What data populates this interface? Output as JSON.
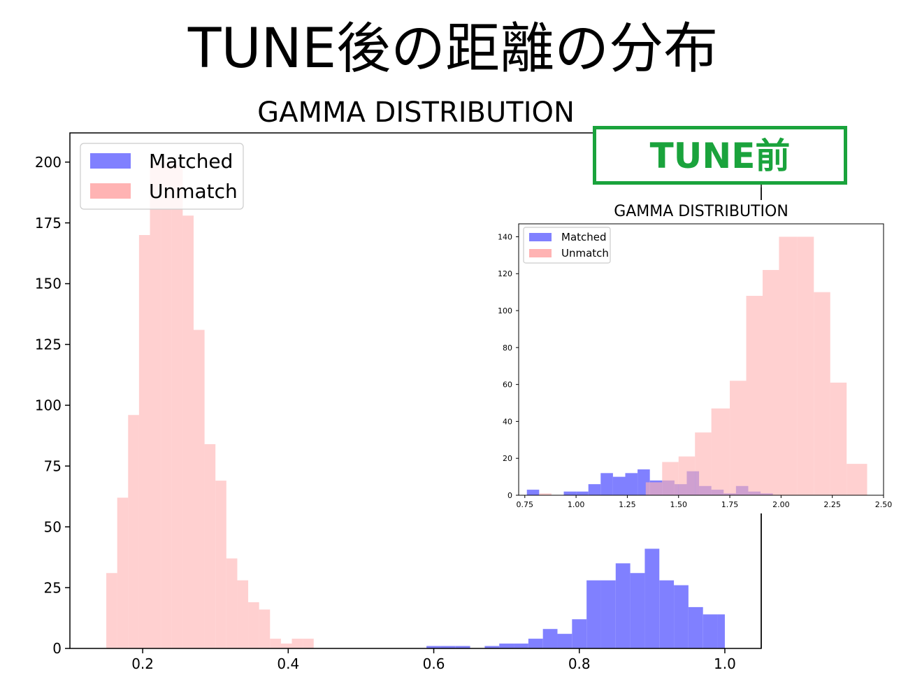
{
  "slide_title": "TUNE後の距離の分布",
  "colors": {
    "matched": "#8080ff",
    "unmatch": "#ffb3b3",
    "overlap": "#9d5cc5",
    "tune_green": "#1aa33c"
  },
  "chart_data": [
    {
      "type": "histogram",
      "title": "GAMMA DISTRIBUTION",
      "xlabel": "",
      "ylabel": "",
      "xlim": [
        0.1,
        1.05
      ],
      "ylim": [
        0,
        212
      ],
      "xticks": [
        0.2,
        0.4,
        0.6,
        0.8,
        1.0
      ],
      "xtick_labels": [
        "0.2",
        "0.4",
        "0.6",
        "0.8",
        "1.0"
      ],
      "yticks": [
        0,
        25,
        50,
        75,
        100,
        125,
        150,
        175,
        200
      ],
      "ytick_labels": [
        "0",
        "25",
        "50",
        "75",
        "100",
        "125",
        "150",
        "175",
        "200"
      ],
      "legend": {
        "position": "top-left",
        "entries": [
          "Matched",
          "Unmatch"
        ]
      },
      "grid": false,
      "series": [
        {
          "name": "Matched",
          "color": "#8080ff",
          "bin_edges": [
            0.59,
            0.61,
            0.63,
            0.65,
            0.67,
            0.69,
            0.71,
            0.73,
            0.75,
            0.77,
            0.79,
            0.81,
            0.83,
            0.85,
            0.87,
            0.89,
            0.91,
            0.93,
            0.95,
            0.97,
            0.99,
            1.0
          ],
          "values": [
            1,
            1,
            1,
            0,
            1,
            2,
            2,
            4,
            8,
            6,
            12,
            28,
            28,
            35,
            31,
            41,
            28,
            26,
            17,
            14,
            14
          ]
        },
        {
          "name": "Unmatch",
          "color": "#ffb3b3",
          "bin_edges": [
            0.15,
            0.165,
            0.18,
            0.195,
            0.21,
            0.225,
            0.24,
            0.255,
            0.27,
            0.285,
            0.3,
            0.315,
            0.33,
            0.345,
            0.36,
            0.375,
            0.39,
            0.405,
            0.42,
            0.435,
            0.45
          ],
          "values": [
            31,
            62,
            96,
            170,
            200,
            200,
            199,
            178,
            131,
            84,
            69,
            37,
            28,
            19,
            16,
            4,
            2,
            4,
            4,
            0
          ]
        }
      ]
    },
    {
      "type": "histogram",
      "title": "GAMMA DISTRIBUTION",
      "annotation": "TUNE前",
      "xlabel": "",
      "ylabel": "",
      "xlim": [
        0.72,
        2.5
      ],
      "ylim": [
        0,
        147
      ],
      "xticks": [
        0.75,
        1.0,
        1.25,
        1.5,
        1.75,
        2.0,
        2.25,
        2.5
      ],
      "xtick_labels": [
        "0.75",
        "1.00",
        "1.25",
        "1.50",
        "1.75",
        "2.00",
        "2.25",
        "2.50"
      ],
      "yticks": [
        0,
        20,
        40,
        60,
        80,
        100,
        120,
        140
      ],
      "ytick_labels": [
        "0",
        "20",
        "40",
        "60",
        "80",
        "100",
        "120",
        "140"
      ],
      "legend": {
        "position": "top-left",
        "entries": [
          "Matched",
          "Unmatch"
        ]
      },
      "grid": false,
      "series": [
        {
          "name": "Matched",
          "color": "#8080ff",
          "bin_edges": [
            0.76,
            0.82,
            0.88,
            0.94,
            1.0,
            1.06,
            1.12,
            1.18,
            1.24,
            1.3,
            1.36,
            1.42,
            1.48,
            1.54,
            1.6,
            1.66,
            1.72,
            1.78,
            1.84,
            1.9,
            1.96,
            2.02
          ],
          "values": [
            3,
            0,
            0,
            2,
            2,
            6,
            12,
            10,
            12,
            14,
            8,
            8,
            6,
            13,
            5,
            3,
            1,
            5,
            2,
            1,
            0
          ]
        },
        {
          "name": "Unmatch",
          "color": "#ffb3b3",
          "bin_edges": [
            0.82,
            0.88,
            1.34,
            1.42,
            1.5,
            1.58,
            1.66,
            1.75,
            1.83,
            1.91,
            1.99,
            2.08,
            2.16,
            2.24,
            2.32,
            2.42
          ],
          "values": [
            1,
            0,
            7,
            18,
            21,
            34,
            47,
            62,
            108,
            122,
            140,
            140,
            110,
            61,
            17
          ]
        }
      ]
    }
  ]
}
